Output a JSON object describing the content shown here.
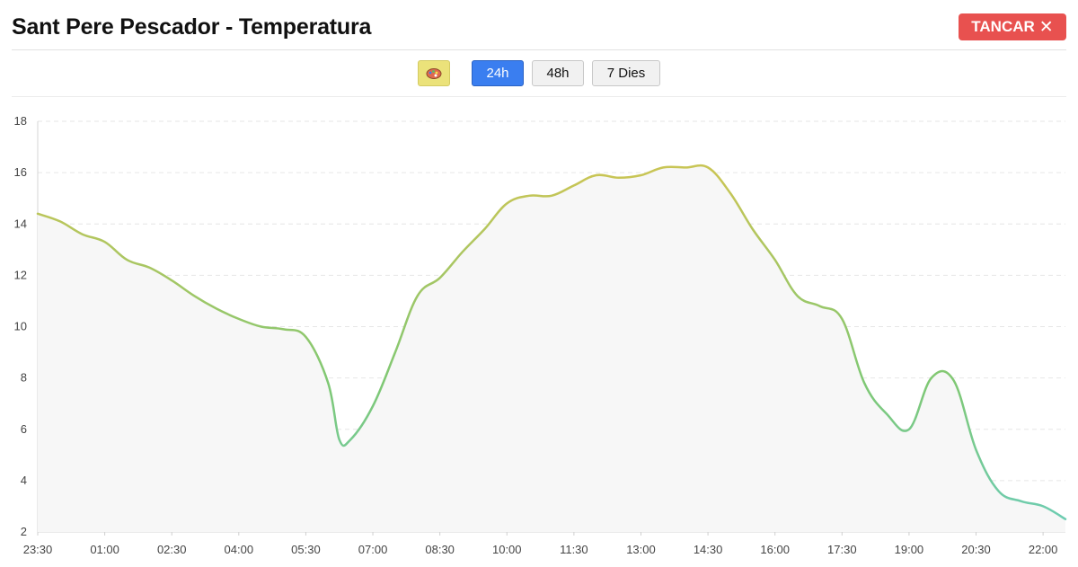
{
  "header": {
    "title": "Sant Pere Pescador - Temperatura",
    "close_label": "TANCAR",
    "close_icon": "close-icon"
  },
  "toolbar": {
    "palette_icon": "palette-icon",
    "buttons": [
      {
        "label": "24h",
        "active": true
      },
      {
        "label": "48h",
        "active": false
      },
      {
        "label": "7 Dies",
        "active": false
      }
    ]
  },
  "colors": {
    "close": "#e8514f",
    "active": "#3a7ef0",
    "palette": "#ebe27a",
    "line_warm": "#c8c555",
    "line_mid": "#7fc874",
    "line_cool": "#6dccb2",
    "fill": "#f7f7f7"
  },
  "chart_data": {
    "type": "area",
    "x_ticks": [
      "23:30",
      "01:00",
      "02:30",
      "04:00",
      "05:30",
      "07:00",
      "08:30",
      "10:00",
      "11:30",
      "13:00",
      "14:30",
      "16:00",
      "17:30",
      "19:00",
      "20:30",
      "22:00"
    ],
    "x_range": [
      "23:30",
      "22:30"
    ],
    "ylim": [
      2,
      18
    ],
    "y_ticks": [
      2,
      4,
      6,
      8,
      10,
      12,
      14,
      16,
      18
    ],
    "grid": true,
    "legend": "none",
    "series": [
      {
        "x": [
          "23:30",
          "00:00",
          "00:30",
          "01:00",
          "01:30",
          "02:00",
          "02:30",
          "03:00",
          "03:30",
          "04:00",
          "04:30",
          "05:00",
          "05:30",
          "06:00",
          "06:15",
          "06:30",
          "07:00",
          "07:30",
          "08:00",
          "08:30",
          "09:00",
          "09:30",
          "10:00",
          "10:30",
          "11:00",
          "11:30",
          "12:00",
          "12:30",
          "13:00",
          "13:30",
          "14:00",
          "14:30",
          "15:00",
          "15:30",
          "16:00",
          "16:30",
          "17:00",
          "17:30",
          "18:00",
          "18:30",
          "19:00",
          "19:30",
          "20:00",
          "20:30",
          "21:00",
          "21:30",
          "22:00",
          "22:30"
        ],
        "y": [
          14.4,
          14.1,
          13.6,
          13.3,
          12.6,
          12.3,
          11.8,
          11.2,
          10.7,
          10.3,
          10.0,
          9.9,
          9.6,
          7.8,
          5.6,
          5.6,
          6.9,
          9.0,
          11.2,
          11.9,
          12.9,
          13.8,
          14.8,
          15.1,
          15.1,
          15.5,
          15.9,
          15.8,
          15.9,
          16.2,
          16.2,
          16.2,
          15.2,
          13.8,
          12.6,
          11.2,
          10.8,
          10.3,
          7.8,
          6.6,
          6.0,
          8.0,
          7.9,
          5.2,
          3.6,
          3.2,
          3.0,
          2.5
        ]
      }
    ]
  }
}
